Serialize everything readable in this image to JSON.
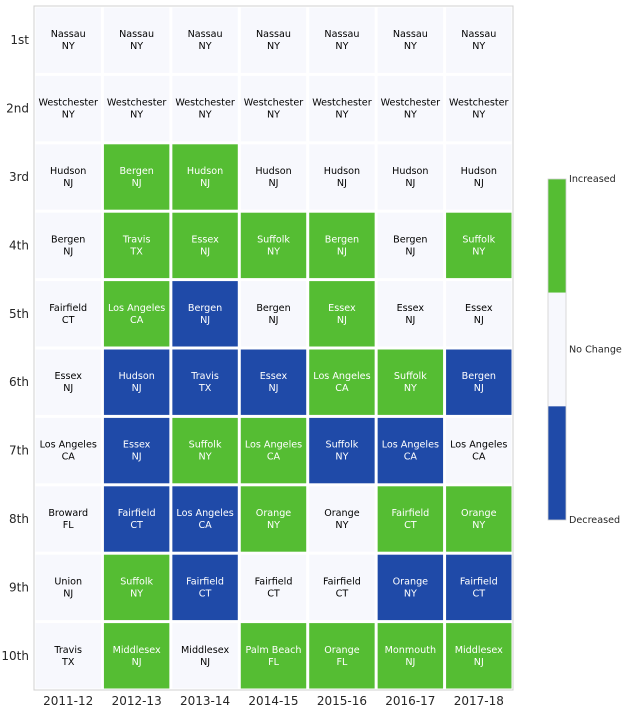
{
  "chart_data": {
    "type": "heatmap",
    "columns": [
      "2011-12",
      "2012-13",
      "2013-14",
      "2014-15",
      "2015-16",
      "2016-17",
      "2017-18"
    ],
    "rows": [
      "1st",
      "2nd",
      "3rd",
      "4th",
      "5th",
      "6th",
      "7th",
      "8th",
      "9th",
      "10th"
    ],
    "cells": [
      [
        [
          "Nassau",
          "NY",
          0
        ],
        [
          "Nassau",
          "NY",
          0
        ],
        [
          "Nassau",
          "NY",
          0
        ],
        [
          "Nassau",
          "NY",
          0
        ],
        [
          "Nassau",
          "NY",
          0
        ],
        [
          "Nassau",
          "NY",
          0
        ],
        [
          "Nassau",
          "NY",
          0
        ]
      ],
      [
        [
          "Westchester",
          "NY",
          0
        ],
        [
          "Westchester",
          "NY",
          0
        ],
        [
          "Westchester",
          "NY",
          0
        ],
        [
          "Westchester",
          "NY",
          0
        ],
        [
          "Westchester",
          "NY",
          0
        ],
        [
          "Westchester",
          "NY",
          0
        ],
        [
          "Westchester",
          "NY",
          0
        ]
      ],
      [
        [
          "Hudson",
          "NJ",
          0
        ],
        [
          "Bergen",
          "NJ",
          1
        ],
        [
          "Hudson",
          "NJ",
          1
        ],
        [
          "Hudson",
          "NJ",
          0
        ],
        [
          "Hudson",
          "NJ",
          0
        ],
        [
          "Hudson",
          "NJ",
          0
        ],
        [
          "Hudson",
          "NJ",
          0
        ]
      ],
      [
        [
          "Bergen",
          "NJ",
          0
        ],
        [
          "Travis",
          "TX",
          1
        ],
        [
          "Essex",
          "NJ",
          1
        ],
        [
          "Suffolk",
          "NY",
          1
        ],
        [
          "Bergen",
          "NJ",
          1
        ],
        [
          "Bergen",
          "NJ",
          0
        ],
        [
          "Suffolk",
          "NY",
          1
        ]
      ],
      [
        [
          "Fairfield",
          "CT",
          0
        ],
        [
          "Los Angeles",
          "CA",
          1
        ],
        [
          "Bergen",
          "NJ",
          -1
        ],
        [
          "Bergen",
          "NJ",
          0
        ],
        [
          "Essex",
          "NJ",
          1
        ],
        [
          "Essex",
          "NJ",
          0
        ],
        [
          "Essex",
          "NJ",
          0
        ]
      ],
      [
        [
          "Essex",
          "NJ",
          0
        ],
        [
          "Hudson",
          "NJ",
          -1
        ],
        [
          "Travis",
          "TX",
          -1
        ],
        [
          "Essex",
          "NJ",
          -1
        ],
        [
          "Los Angeles",
          "CA",
          1
        ],
        [
          "Suffolk",
          "NY",
          1
        ],
        [
          "Bergen",
          "NJ",
          -1
        ]
      ],
      [
        [
          "Los Angeles",
          "CA",
          0
        ],
        [
          "Essex",
          "NJ",
          -1
        ],
        [
          "Suffolk",
          "NY",
          1
        ],
        [
          "Los Angeles",
          "CA",
          1
        ],
        [
          "Suffolk",
          "NY",
          -1
        ],
        [
          "Los Angeles",
          "CA",
          -1
        ],
        [
          "Los Angeles",
          "CA",
          0
        ]
      ],
      [
        [
          "Broward",
          "FL",
          0
        ],
        [
          "Fairfield",
          "CT",
          -1
        ],
        [
          "Los Angeles",
          "CA",
          -1
        ],
        [
          "Orange",
          "NY",
          1
        ],
        [
          "Orange",
          "NY",
          0
        ],
        [
          "Fairfield",
          "CT",
          1
        ],
        [
          "Orange",
          "NY",
          1
        ]
      ],
      [
        [
          "Union",
          "NJ",
          0
        ],
        [
          "Suffolk",
          "NY",
          1
        ],
        [
          "Fairfield",
          "CT",
          -1
        ],
        [
          "Fairfield",
          "CT",
          0
        ],
        [
          "Fairfield",
          "CT",
          0
        ],
        [
          "Orange",
          "NY",
          -1
        ],
        [
          "Fairfield",
          "CT",
          -1
        ]
      ],
      [
        [
          "Travis",
          "TX",
          0
        ],
        [
          "Middlesex",
          "NJ",
          1
        ],
        [
          "Middlesex",
          "NJ",
          0
        ],
        [
          "Palm Beach",
          "FL",
          1
        ],
        [
          "Orange",
          "FL",
          1
        ],
        [
          "Monmouth",
          "NJ",
          1
        ],
        [
          "Middlesex",
          "NJ",
          1
        ]
      ]
    ],
    "value_meaning": {
      "-1": "Decreased",
      "0": "No Change",
      "1": "Increased"
    },
    "colors": {
      "-1": "#1f4aa8",
      "0": "#f7f8fd",
      "1": "#55bd33"
    },
    "colorbar": {
      "labels": [
        "Increased",
        "No Change",
        "Decreased"
      ]
    },
    "title": "",
    "xlabel": "",
    "ylabel": ""
  }
}
